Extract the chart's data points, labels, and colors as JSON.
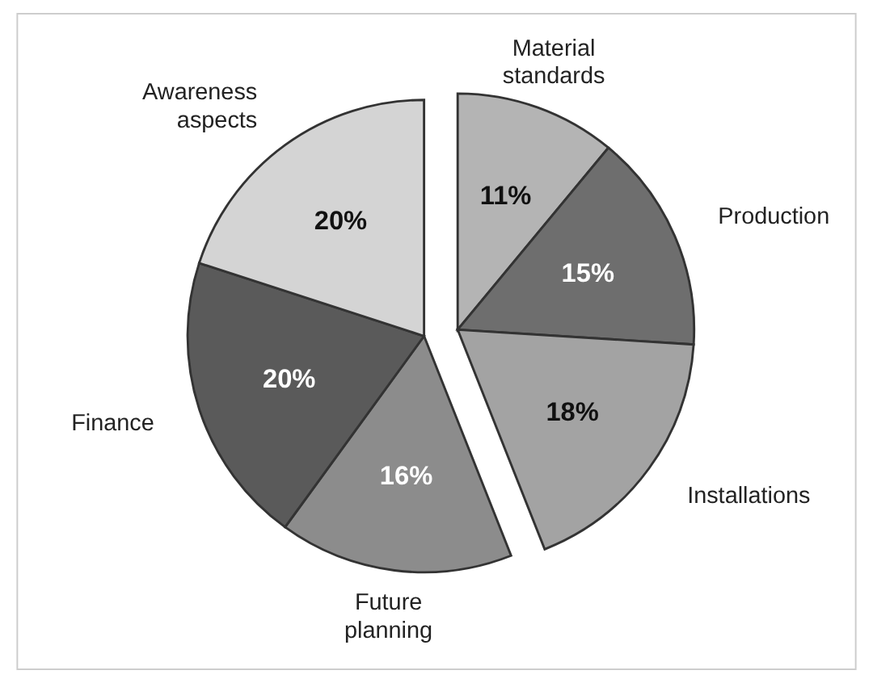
{
  "chart_data": {
    "type": "pie",
    "categories": [
      "Material standards",
      "Production",
      "Installations",
      "Future planning",
      "Finance",
      "Awareness aspects"
    ],
    "values": [
      11,
      15,
      18,
      16,
      20,
      20
    ],
    "value_labels": [
      "11%",
      "15%",
      "18%",
      "16%",
      "20%",
      "20%"
    ],
    "colors": [
      "#b4b4b4",
      "#6e6e6e",
      "#a3a3a3",
      "#8c8c8c",
      "#5a5a5a",
      "#d4d4d4"
    ]
  }
}
